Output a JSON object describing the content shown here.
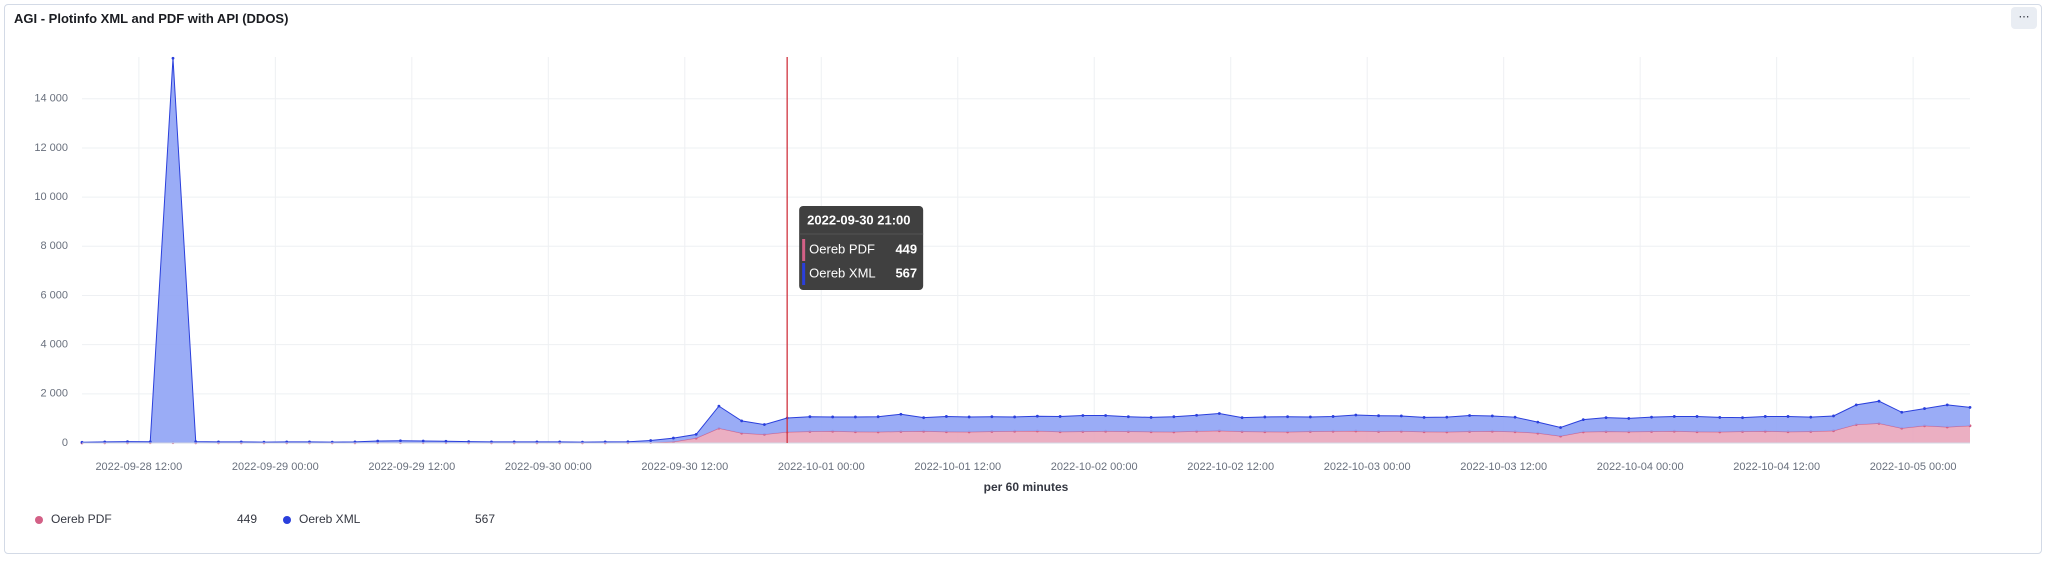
{
  "chart_data": {
    "type": "stacked-area",
    "title": "AGI - Plotinfo XML and PDF with API (DDOS)",
    "xlabel": "per 60 minutes",
    "x": [
      "2022-09-28 07:00",
      "2022-09-28 09:00",
      "2022-09-28 11:00",
      "2022-09-28 13:00",
      "2022-09-28 15:00",
      "2022-09-28 17:00",
      "2022-09-28 19:00",
      "2022-09-28 21:00",
      "2022-09-28 23:00",
      "2022-09-29 01:00",
      "2022-09-29 03:00",
      "2022-09-29 05:00",
      "2022-09-29 07:00",
      "2022-09-29 09:00",
      "2022-09-29 11:00",
      "2022-09-29 13:00",
      "2022-09-29 15:00",
      "2022-09-29 17:00",
      "2022-09-29 19:00",
      "2022-09-29 21:00",
      "2022-09-29 23:00",
      "2022-09-30 01:00",
      "2022-09-30 03:00",
      "2022-09-30 05:00",
      "2022-09-30 07:00",
      "2022-09-30 09:00",
      "2022-09-30 11:00",
      "2022-09-30 13:00",
      "2022-09-30 15:00",
      "2022-09-30 17:00",
      "2022-09-30 19:00",
      "2022-09-30 21:00",
      "2022-09-30 23:00",
      "2022-10-01 01:00",
      "2022-10-01 03:00",
      "2022-10-01 05:00",
      "2022-10-01 07:00",
      "2022-10-01 09:00",
      "2022-10-01 11:00",
      "2022-10-01 13:00",
      "2022-10-01 15:00",
      "2022-10-01 17:00",
      "2022-10-01 19:00",
      "2022-10-01 21:00",
      "2022-10-01 23:00",
      "2022-10-02 01:00",
      "2022-10-02 03:00",
      "2022-10-02 05:00",
      "2022-10-02 07:00",
      "2022-10-02 09:00",
      "2022-10-02 11:00",
      "2022-10-02 13:00",
      "2022-10-02 15:00",
      "2022-10-02 17:00",
      "2022-10-02 19:00",
      "2022-10-02 21:00",
      "2022-10-02 23:00",
      "2022-10-03 01:00",
      "2022-10-03 03:00",
      "2022-10-03 05:00",
      "2022-10-03 07:00",
      "2022-10-03 09:00",
      "2022-10-03 11:00",
      "2022-10-03 13:00",
      "2022-10-03 15:00",
      "2022-10-03 17:00",
      "2022-10-03 19:00",
      "2022-10-03 21:00",
      "2022-10-03 23:00",
      "2022-10-04 01:00",
      "2022-10-04 03:00",
      "2022-10-04 05:00",
      "2022-10-04 07:00",
      "2022-10-04 09:00",
      "2022-10-04 11:00",
      "2022-10-04 13:00",
      "2022-10-04 15:00",
      "2022-10-04 17:00",
      "2022-10-04 19:00",
      "2022-10-04 21:00",
      "2022-10-04 23:00",
      "2022-10-05 01:00",
      "2022-10-05 03:00",
      "2022-10-05 05:00"
    ],
    "series": [
      {
        "name": "Oereb PDF",
        "color": "#d36086",
        "fill": "#e9a6bb",
        "values": [
          0,
          5,
          5,
          10,
          10,
          5,
          5,
          5,
          5,
          5,
          5,
          5,
          5,
          10,
          10,
          10,
          10,
          5,
          5,
          5,
          5,
          5,
          5,
          5,
          10,
          20,
          50,
          200,
          600,
          400,
          350,
          449,
          470,
          480,
          460,
          450,
          470,
          480,
          460,
          450,
          470,
          480,
          490,
          460,
          470,
          480,
          470,
          460,
          450,
          480,
          500,
          470,
          460,
          450,
          470,
          480,
          490,
          470,
          480,
          460,
          450,
          470,
          480,
          460,
          400,
          280,
          450,
          470,
          460,
          470,
          480,
          460,
          450,
          470,
          480,
          460,
          470,
          500,
          750,
          800,
          600,
          700,
          650,
          700
        ]
      },
      {
        "name": "Oereb XML",
        "color": "#2a3fdc",
        "fill": "#8fa3f5",
        "values": [
          30,
          40,
          50,
          40,
          15640,
          50,
          40,
          40,
          30,
          40,
          40,
          30,
          40,
          70,
          80,
          70,
          60,
          50,
          40,
          40,
          40,
          40,
          30,
          40,
          40,
          80,
          150,
          150,
          900,
          500,
          400,
          567,
          600,
          580,
          600,
          620,
          700,
          550,
          620,
          610,
          600,
          580,
          600,
          620,
          650,
          640,
          600,
          580,
          620,
          650,
          700,
          560,
          600,
          620,
          590,
          600,
          650,
          640,
          620,
          580,
          600,
          650,
          620,
          590,
          450,
          350,
          500,
          560,
          540,
          580,
          600,
          620,
          590,
          560,
          600,
          620,
          580,
          600,
          800,
          900,
          650,
          700,
          900,
          750
        ]
      }
    ],
    "xlim": [
      "2022-09-28 07:00",
      "2022-10-05 05:00"
    ],
    "xticks": [
      "2022-09-28 12:00",
      "2022-09-29 00:00",
      "2022-09-29 12:00",
      "2022-09-30 00:00",
      "2022-09-30 12:00",
      "2022-10-01 00:00",
      "2022-10-01 12:00",
      "2022-10-02 00:00",
      "2022-10-02 12:00",
      "2022-10-03 00:00",
      "2022-10-03 12:00",
      "2022-10-04 00:00",
      "2022-10-04 12:00",
      "2022-10-05 00:00"
    ],
    "ylim": [
      0,
      15700
    ],
    "yticks": [
      0,
      {
        "value": 2000,
        "label": "2 000"
      },
      {
        "value": 4000,
        "label": "4 000"
      },
      {
        "value": 6000,
        "label": "6 000"
      },
      {
        "value": 8000,
        "label": "8 000"
      },
      {
        "value": 10000,
        "label": "10 000"
      },
      {
        "value": 12000,
        "label": "12 000"
      },
      {
        "value": 14000,
        "label": "14 000"
      }
    ],
    "grid": true,
    "crosshair": "2022-09-30 21:00"
  }
}
